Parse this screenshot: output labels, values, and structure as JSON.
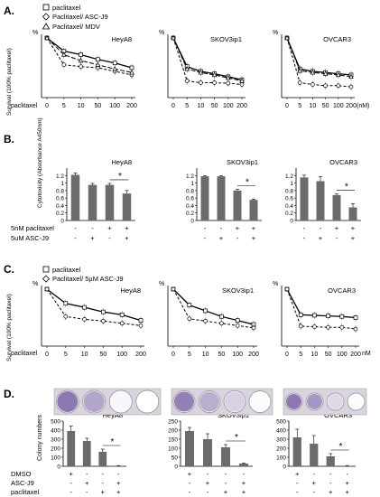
{
  "panels": {
    "A": {
      "letter": "A.",
      "legend": [
        "paclitaxel",
        "Paclitaxel/ ASC-J9",
        "Paclitaxel/ MDV"
      ],
      "ylabel": "Survival (100% paclitaxel)",
      "xlabel": "paclitaxel",
      "unit": "(nM)"
    },
    "B": {
      "letter": "B.",
      "ylabel": "Cytotoxicity (Absorbance A450nm)",
      "row_labels": [
        "5nM paclitaxel",
        "5uM ASC-J9"
      ],
      "row_signs": [
        [
          "-",
          "-",
          "+",
          "+"
        ],
        [
          "-",
          "+",
          "-",
          "+"
        ]
      ]
    },
    "C": {
      "letter": "C.",
      "legend": [
        "paclitaxel",
        "Paclitaxel/ 5µM ASC-J9"
      ],
      "ylabel": "Survival (100% paclitaxel)",
      "xlabel": "paclitaxel",
      "unit": "nM"
    },
    "D": {
      "letter": "D.",
      "ylabel": "Colony numbers",
      "row_labels": [
        "DMSO",
        "ASC-J9",
        "paclitaxel"
      ],
      "row_signs": [
        [
          "+",
          "-",
          "-",
          "-"
        ],
        [
          "-",
          "+",
          "-",
          "+"
        ],
        [
          "-",
          "-",
          "+",
          "+"
        ]
      ]
    }
  },
  "chart_data": [
    {
      "panel": "A",
      "type": "line",
      "title": "HeyA8",
      "x": [
        "0",
        "5",
        "10",
        "50",
        "100",
        "200"
      ],
      "ylim": [
        0,
        100
      ],
      "y_unit": "%",
      "series": [
        {
          "name": "paclitaxel",
          "values": [
            100,
            78,
            72,
            64,
            58,
            50
          ]
        },
        {
          "name": "Paclitaxel/ ASC-J9",
          "values": [
            100,
            55,
            52,
            50,
            44,
            38
          ]
        },
        {
          "name": "Paclitaxel/ MDV",
          "values": [
            100,
            72,
            62,
            55,
            48,
            42
          ]
        }
      ]
    },
    {
      "panel": "A",
      "type": "line",
      "title": "SKOV3ip1",
      "x": [
        "0",
        "5",
        "10",
        "50",
        "100",
        "200"
      ],
      "ylim": [
        0,
        100
      ],
      "y_unit": "%",
      "series": [
        {
          "name": "paclitaxel",
          "values": [
            100,
            52,
            44,
            40,
            35,
            30
          ]
        },
        {
          "name": "Paclitaxel/ ASC-J9",
          "values": [
            100,
            28,
            25,
            25,
            24,
            22
          ]
        },
        {
          "name": "Paclitaxel/ MDV",
          "values": [
            100,
            48,
            42,
            38,
            33,
            28
          ]
        }
      ]
    },
    {
      "panel": "A",
      "type": "line",
      "title": "OVCAR3",
      "x": [
        "0",
        "5",
        "10",
        "50",
        "100",
        "200"
      ],
      "ylim": [
        0,
        100
      ],
      "y_unit": "%",
      "series": [
        {
          "name": "paclitaxel",
          "values": [
            100,
            48,
            44,
            42,
            40,
            38
          ]
        },
        {
          "name": "Paclitaxel/ ASC-J9",
          "values": [
            100,
            25,
            22,
            20,
            20,
            18
          ]
        },
        {
          "name": "Paclitaxel/ MDV",
          "values": [
            100,
            45,
            42,
            40,
            38,
            35
          ]
        }
      ]
    },
    {
      "panel": "B",
      "type": "bar",
      "title": "HeyA8",
      "categories": [
        "1",
        "2",
        "3",
        "4"
      ],
      "values": [
        1.22,
        0.95,
        0.95,
        0.72
      ],
      "errors": [
        0.05,
        0.04,
        0.04,
        0.08
      ],
      "ylim": [
        0,
        1.4
      ],
      "yticks": [
        "0",
        "0.2",
        "0.4",
        "0.6",
        "0.8",
        "1",
        "1.2"
      ],
      "significance": {
        "between": [
          2,
          3
        ],
        "label": "*"
      }
    },
    {
      "panel": "B",
      "type": "bar",
      "title": "SKOV3ip1",
      "categories": [
        "1",
        "2",
        "3",
        "4"
      ],
      "values": [
        1.18,
        1.18,
        0.8,
        0.55
      ],
      "errors": [
        0.02,
        0.02,
        0.03,
        0.02
      ],
      "ylim": [
        0,
        1.4
      ],
      "yticks": [
        "0",
        "0.2",
        "0.4",
        "0.6",
        "0.8",
        "1",
        "1.2"
      ],
      "significance": {
        "between": [
          2,
          3
        ],
        "label": "*"
      }
    },
    {
      "panel": "B",
      "type": "bar",
      "title": "OVCAR3",
      "categories": [
        "1",
        "2",
        "3",
        "4"
      ],
      "values": [
        1.15,
        1.05,
        0.68,
        0.35
      ],
      "errors": [
        0.06,
        0.12,
        0.03,
        0.1
      ],
      "ylim": [
        0,
        1.4
      ],
      "yticks": [
        "0",
        "0.2",
        "0.4",
        "0.6",
        "0.8",
        "1",
        "1.2"
      ],
      "significance": {
        "between": [
          2,
          3
        ],
        "label": "*"
      }
    },
    {
      "panel": "C",
      "type": "line",
      "title": "HeyA8",
      "x": [
        "0",
        "5",
        "10",
        "50",
        "100",
        "200"
      ],
      "ylim": [
        0,
        100
      ],
      "y_unit": "%",
      "series": [
        {
          "name": "paclitaxel",
          "values": [
            100,
            75,
            68,
            60,
            55,
            45
          ]
        },
        {
          "name": "Paclitaxel/ 5µM ASC-J9",
          "values": [
            100,
            52,
            47,
            44,
            40,
            36
          ]
        }
      ]
    },
    {
      "panel": "C",
      "type": "line",
      "title": "SKOV3ip1",
      "x": [
        "0",
        "5",
        "10",
        "50",
        "100",
        "200"
      ],
      "ylim": [
        0,
        100
      ],
      "y_unit": "%",
      "series": [
        {
          "name": "paclitaxel",
          "values": [
            100,
            72,
            62,
            52,
            45,
            38
          ]
        },
        {
          "name": "Paclitaxel/ 5µM ASC-J9",
          "values": [
            100,
            48,
            44,
            40,
            36,
            32
          ]
        }
      ]
    },
    {
      "panel": "C",
      "type": "line",
      "title": "OVCAR3",
      "x": [
        "0",
        "5",
        "10",
        "50",
        "100",
        "200"
      ],
      "ylim": [
        0,
        100
      ],
      "y_unit": "%",
      "series": [
        {
          "name": "paclitaxel",
          "values": [
            100,
            55,
            54,
            53,
            52,
            50
          ]
        },
        {
          "name": "Paclitaxel/ 5µM ASC-J9",
          "values": [
            100,
            35,
            34,
            33,
            33,
            30
          ]
        }
      ]
    },
    {
      "panel": "D",
      "type": "bar",
      "title": "HeyA8",
      "categories": [
        "1",
        "2",
        "3",
        "4"
      ],
      "values": [
        390,
        280,
        160,
        5
      ],
      "errors": [
        55,
        30,
        30,
        3
      ],
      "ylim": [
        0,
        500
      ],
      "yticks": [
        "0",
        "100",
        "200",
        "300",
        "400",
        "500"
      ],
      "significance": {
        "between": [
          2,
          3
        ],
        "label": "*"
      }
    },
    {
      "panel": "D",
      "type": "bar",
      "title": "SKOV3ip1",
      "categories": [
        "1",
        "2",
        "3",
        "4"
      ],
      "values": [
        195,
        150,
        105,
        15
      ],
      "errors": [
        20,
        30,
        15,
        3
      ],
      "ylim": [
        0,
        250
      ],
      "yticks": [
        "0",
        "50",
        "100",
        "150",
        "200",
        "250"
      ],
      "significance": {
        "between": [
          2,
          3
        ],
        "label": "*"
      }
    },
    {
      "panel": "D",
      "type": "bar",
      "title": "OVCAR3",
      "categories": [
        "1",
        "2",
        "3",
        "4"
      ],
      "values": [
        320,
        250,
        110,
        5
      ],
      "errors": [
        90,
        90,
        30,
        3
      ],
      "ylim": [
        0,
        500
      ],
      "yticks": [
        "0",
        "100",
        "200",
        "300",
        "400",
        "500"
      ],
      "significance": {
        "between": [
          2,
          3
        ],
        "label": "*"
      }
    }
  ],
  "colors": {
    "bar": "#6b6b6b",
    "line": "#000000",
    "plate_bg": "#d9d4df",
    "plate_well": "#ffffff",
    "colony": "#6a4f9a"
  },
  "plates": [
    {
      "title": "HeyA8",
      "density": [
        0.9,
        0.6,
        0.05,
        0.0
      ]
    },
    {
      "title": "SKOV3ip1",
      "density": [
        0.85,
        0.55,
        0.3,
        0.02
      ]
    },
    {
      "title": "OVCAR3",
      "density": [
        0.9,
        0.7,
        0.25,
        0.02
      ]
    }
  ]
}
